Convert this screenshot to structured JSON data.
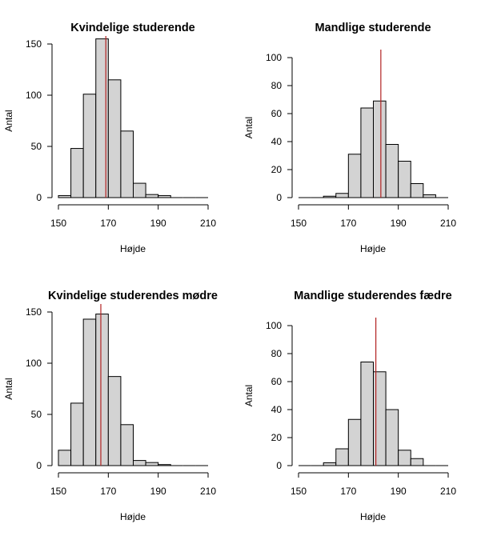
{
  "chart_data": [
    {
      "type": "bar",
      "title": "Kvindelige studerende",
      "xlabel": "Højde",
      "ylabel": "Antal",
      "bin_edges": [
        150,
        155,
        160,
        165,
        170,
        175,
        180,
        185,
        190,
        195,
        200,
        205,
        210
      ],
      "values": [
        2,
        48,
        101,
        155,
        115,
        65,
        14,
        3,
        2,
        0,
        0,
        0
      ],
      "reference_line": 169,
      "xlim": [
        150,
        210
      ],
      "ylim": [
        0,
        160
      ],
      "xticks": [
        150,
        170,
        190,
        210
      ],
      "xtick_labels": [
        "150",
        "170",
        "190",
        "210"
      ],
      "yticks": [
        0,
        50,
        100,
        150
      ],
      "ytick_labels": [
        "0",
        "50",
        "100",
        "150"
      ],
      "bar_color": "#d3d3d3",
      "line_color": "#b22222"
    },
    {
      "type": "bar",
      "title": "Mandlige studerende",
      "xlabel": "Højde",
      "ylabel": "Antal",
      "bin_edges": [
        150,
        155,
        160,
        165,
        170,
        175,
        180,
        185,
        190,
        195,
        200,
        205,
        210
      ],
      "values": [
        0,
        0,
        1,
        3,
        31,
        64,
        69,
        38,
        26,
        10,
        2,
        0
      ],
      "reference_line": 183,
      "xlim": [
        150,
        210
      ],
      "ylim": [
        0,
        100
      ],
      "xticks": [
        150,
        170,
        190,
        210
      ],
      "xtick_labels": [
        "150",
        "170",
        "190",
        "210"
      ],
      "yticks": [
        0,
        20,
        40,
        60,
        80,
        100
      ],
      "ytick_labels": [
        "0",
        "20",
        "40",
        "60",
        "80",
        "100"
      ],
      "bar_color": "#d3d3d3",
      "line_color": "#b22222"
    },
    {
      "type": "bar",
      "title": "Kvindelige studerendes mødre",
      "xlabel": "Højde",
      "ylabel": "Antal",
      "bin_edges": [
        150,
        155,
        160,
        165,
        170,
        175,
        180,
        185,
        190,
        195,
        200,
        205,
        210
      ],
      "values": [
        15,
        61,
        143,
        148,
        87,
        40,
        5,
        3,
        1,
        0,
        0,
        0
      ],
      "reference_line": 167,
      "xlim": [
        150,
        210
      ],
      "ylim": [
        0,
        160
      ],
      "xticks": [
        150,
        170,
        190,
        210
      ],
      "xtick_labels": [
        "150",
        "170",
        "190",
        "210"
      ],
      "yticks": [
        0,
        50,
        100,
        150
      ],
      "ytick_labels": [
        "0",
        "50",
        "100",
        "150"
      ],
      "bar_color": "#d3d3d3",
      "line_color": "#b22222"
    },
    {
      "type": "bar",
      "title": "Mandlige studerendes fædre",
      "xlabel": "Højde",
      "ylabel": "Antal",
      "bin_edges": [
        150,
        155,
        160,
        165,
        170,
        175,
        180,
        185,
        190,
        195,
        200,
        205,
        210
      ],
      "values": [
        0,
        0,
        2,
        12,
        33,
        74,
        67,
        40,
        11,
        5,
        0,
        0
      ],
      "reference_line": 181,
      "xlim": [
        150,
        210
      ],
      "ylim": [
        0,
        100
      ],
      "xticks": [
        150,
        170,
        190,
        210
      ],
      "xtick_labels": [
        "150",
        "170",
        "190",
        "210"
      ],
      "yticks": [
        0,
        20,
        40,
        60,
        80,
        100
      ],
      "ytick_labels": [
        "0",
        "20",
        "40",
        "60",
        "80",
        "100"
      ],
      "bar_color": "#d3d3d3",
      "line_color": "#b22222"
    }
  ]
}
